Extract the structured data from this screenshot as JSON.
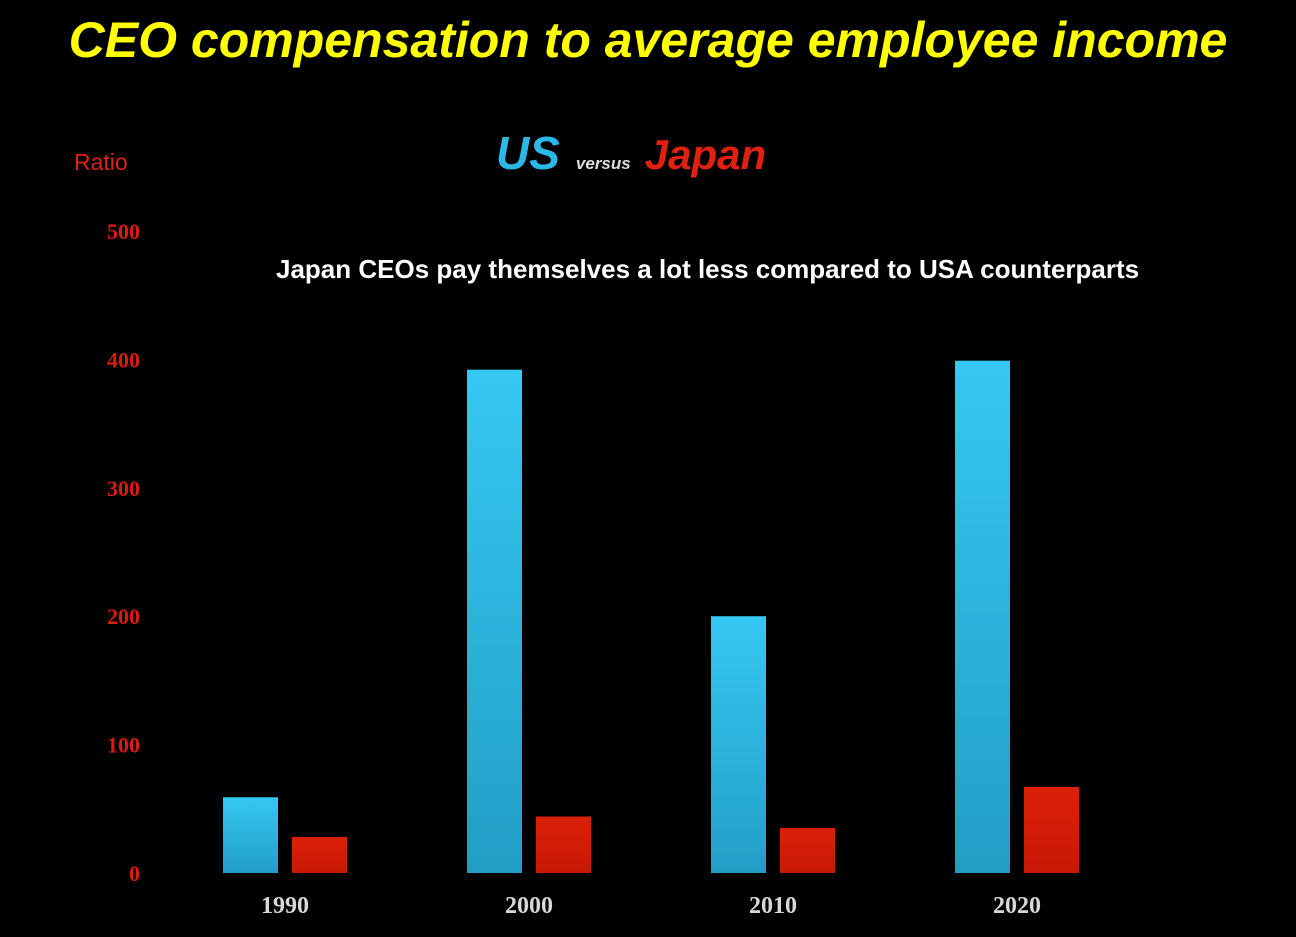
{
  "title": "CEO compensation to average employee income",
  "legend": {
    "us": "US",
    "versus": "versus",
    "japan": "Japan"
  },
  "annotation": "Japan CEOs pay themselves a lot less compared to USA counterparts",
  "colors": {
    "title": "#ffff00",
    "us": "#2bb8e6",
    "japan": "#d81e08",
    "axis_text": "#e02010",
    "background": "#000000"
  },
  "chart_data": {
    "type": "bar",
    "categories": [
      "1990",
      "2000",
      "2010",
      "2020"
    ],
    "series": [
      {
        "name": "US",
        "values": [
          59,
          392,
          200,
          399
        ]
      },
      {
        "name": "Japan",
        "values": [
          28,
          44,
          35,
          67
        ]
      }
    ],
    "ylabel": "Ratio",
    "yticks": [
      "0",
      "100",
      "200",
      "300",
      "400",
      "500"
    ],
    "ylim": [
      0,
      500
    ],
    "grid": false,
    "legend": "top-center"
  }
}
